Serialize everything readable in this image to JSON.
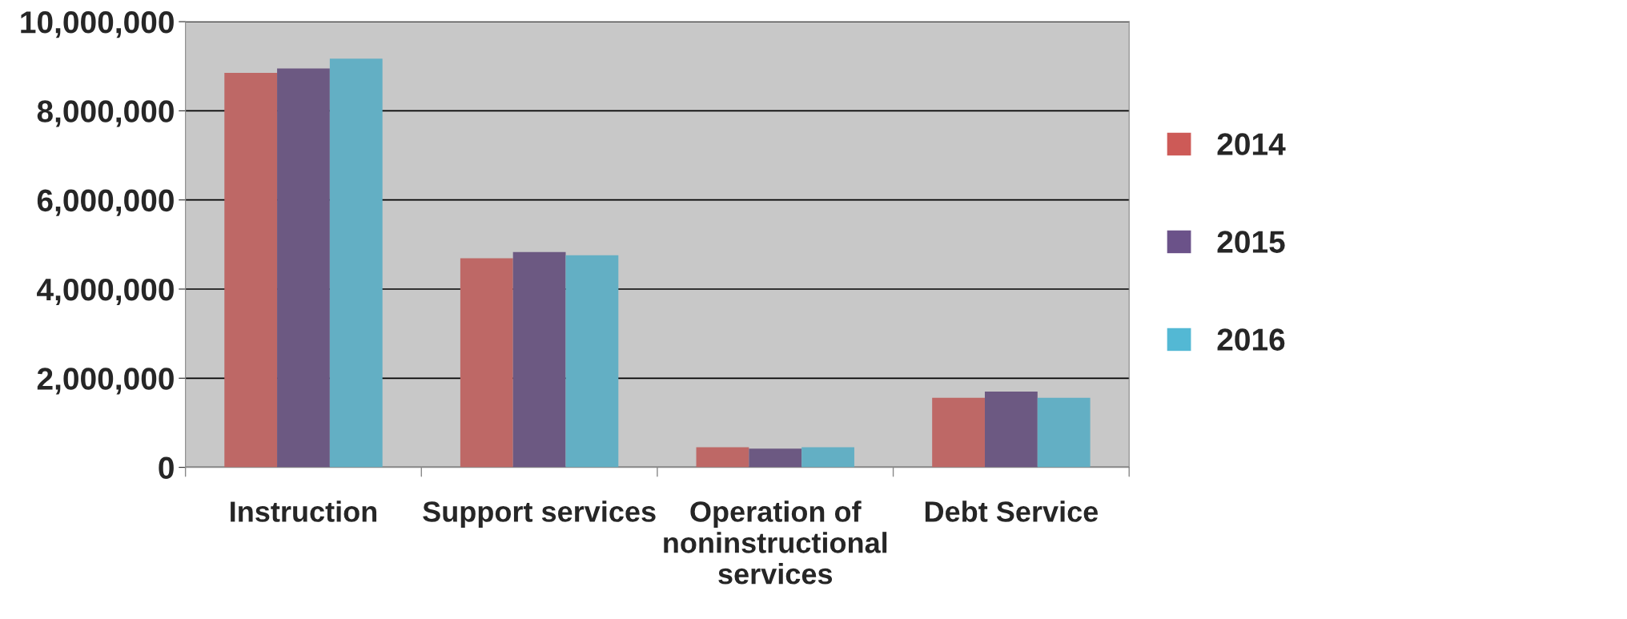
{
  "chart_data": {
    "type": "bar",
    "categories": [
      "Instruction",
      "Support services",
      "Operation of\nnoninstructional\nservices",
      "Debt Service"
    ],
    "series": [
      {
        "name": "2014",
        "color": "#cd5a57",
        "values": [
          8850000,
          4690000,
          450000,
          1560000
        ]
      },
      {
        "name": "2015",
        "color": "#6b5289",
        "values": [
          8950000,
          4830000,
          420000,
          1700000
        ]
      },
      {
        "name": "2016",
        "color": "#53b8d4",
        "values": [
          9170000,
          4760000,
          450000,
          1560000
        ]
      }
    ],
    "ylim": [
      0,
      10000000
    ],
    "yticks": [
      {
        "value": 0,
        "label": "0"
      },
      {
        "value": 2000000,
        "label": "2,000,000"
      },
      {
        "value": 4000000,
        "label": "4,000,000"
      },
      {
        "value": 6000000,
        "label": "6,000,000"
      },
      {
        "value": 8000000,
        "label": "8,000,000"
      },
      {
        "value": 10000000,
        "label": "10,000,000"
      }
    ],
    "grid": "y",
    "legend": "right"
  }
}
